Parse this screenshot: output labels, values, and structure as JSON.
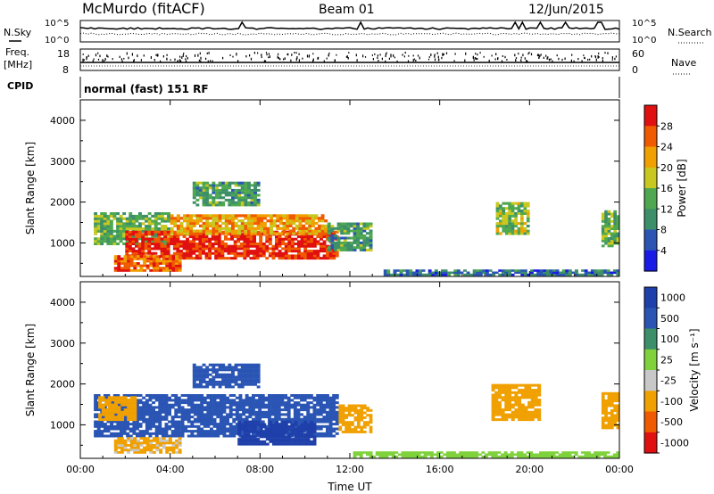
{
  "header": {
    "station": "McMurdo (fitACF)",
    "beam": "Beam 01",
    "date": "12/Jun/2015"
  },
  "status_panel": {
    "nsky_label": "N.Sky",
    "nsearch_label": "N.Search",
    "freq_label_line1": "Freq.",
    "freq_label_line2": "[MHz]",
    "nave_label": "Nave",
    "cpid_label": "CPID",
    "cpid_text": "normal (fast) 151 RF",
    "noise_ticks": [
      "10^5",
      "10^0"
    ],
    "freq_ticks": [
      "18",
      "8"
    ],
    "nave_ticks": [
      "60",
      "0"
    ]
  },
  "colors": {
    "power_scale": [
      "#1a1ae6",
      "#2a55b4",
      "#3d8f6a",
      "#4fa84f",
      "#c8c820",
      "#f0a000",
      "#f05a00",
      "#e01010"
    ],
    "velocity_scale": [
      "#e01010",
      "#f05a00",
      "#f0a000",
      "#c8c8c8",
      "#7fd23c",
      "#3d8f6a",
      "#2a55b4",
      "#1f3faa"
    ]
  },
  "chart_data": [
    {
      "type": "heatmap",
      "name": "power",
      "xlabel": "Time UT",
      "ylabel": "Slant Range [km]",
      "x_ticks": [
        "00:00",
        "04:00",
        "08:00",
        "12:00",
        "16:00",
        "20:00",
        "00:00"
      ],
      "xlim_hours": [
        0,
        24
      ],
      "y_ticks": [
        1000,
        2000,
        3000,
        4000
      ],
      "ylim": [
        180,
        4500
      ],
      "colorbar_label": "Power [dB]",
      "colorbar_ticks": [
        4,
        8,
        12,
        16,
        20,
        24,
        28
      ],
      "colorbar_range": [
        0,
        32
      ],
      "regions": [
        {
          "t0": 0.6,
          "t1": 4.0,
          "r0": 950,
          "r1": 1750,
          "value": 14
        },
        {
          "t0": 2.0,
          "t1": 11.5,
          "r0": 600,
          "r1": 1300,
          "value": 29
        },
        {
          "t0": 4.0,
          "t1": 11.0,
          "r0": 1200,
          "r1": 1700,
          "value": 22
        },
        {
          "t0": 1.5,
          "t1": 4.5,
          "r0": 300,
          "r1": 700,
          "value": 26
        },
        {
          "t0": 11.0,
          "t1": 13.0,
          "r0": 800,
          "r1": 1500,
          "value": 12
        },
        {
          "t0": 5.0,
          "t1": 8.0,
          "r0": 1900,
          "r1": 2500,
          "value": 12
        },
        {
          "t0": 18.5,
          "t1": 20.0,
          "r0": 1200,
          "r1": 2000,
          "value": 16
        },
        {
          "t0": 23.2,
          "t1": 24.0,
          "r0": 900,
          "r1": 1800,
          "value": 14
        },
        {
          "t0": 13.5,
          "t1": 24.0,
          "r0": 200,
          "r1": 350,
          "value": 8
        }
      ]
    },
    {
      "type": "heatmap",
      "name": "velocity",
      "xlabel": "Time UT",
      "ylabel": "Slant Range [km]",
      "x_ticks": [
        "00:00",
        "04:00",
        "08:00",
        "12:00",
        "16:00",
        "20:00",
        "00:00"
      ],
      "xlim_hours": [
        0,
        24
      ],
      "y_ticks": [
        1000,
        2000,
        3000,
        4000
      ],
      "ylim": [
        180,
        4500
      ],
      "colorbar_label": "Velocity [m s⁻¹]",
      "colorbar_ticks": [
        "1000",
        "500",
        "100",
        "25",
        "-25",
        "-100",
        "-500",
        "-1000"
      ],
      "regions": [
        {
          "t0": 0.6,
          "t1": 11.5,
          "r0": 700,
          "r1": 1750,
          "value": 300
        },
        {
          "t0": 7.0,
          "t1": 10.5,
          "r0": 500,
          "r1": 1100,
          "value": 900
        },
        {
          "t0": 0.8,
          "t1": 2.5,
          "r0": 1100,
          "r1": 1700,
          "value": -150
        },
        {
          "t0": 5.0,
          "t1": 8.0,
          "r0": 1900,
          "r1": 2500,
          "value": 300
        },
        {
          "t0": 11.5,
          "t1": 13.0,
          "r0": 800,
          "r1": 1500,
          "value": -300
        },
        {
          "t0": 18.3,
          "t1": 20.5,
          "r0": 1100,
          "r1": 2000,
          "value": -300
        },
        {
          "t0": 23.2,
          "t1": 24.0,
          "r0": 900,
          "r1": 1800,
          "value": -150
        },
        {
          "t0": 1.5,
          "t1": 4.5,
          "r0": 300,
          "r1": 700,
          "value": -120
        },
        {
          "t0": 12.0,
          "t1": 24.0,
          "r0": 200,
          "r1": 350,
          "value": 0
        }
      ]
    }
  ]
}
